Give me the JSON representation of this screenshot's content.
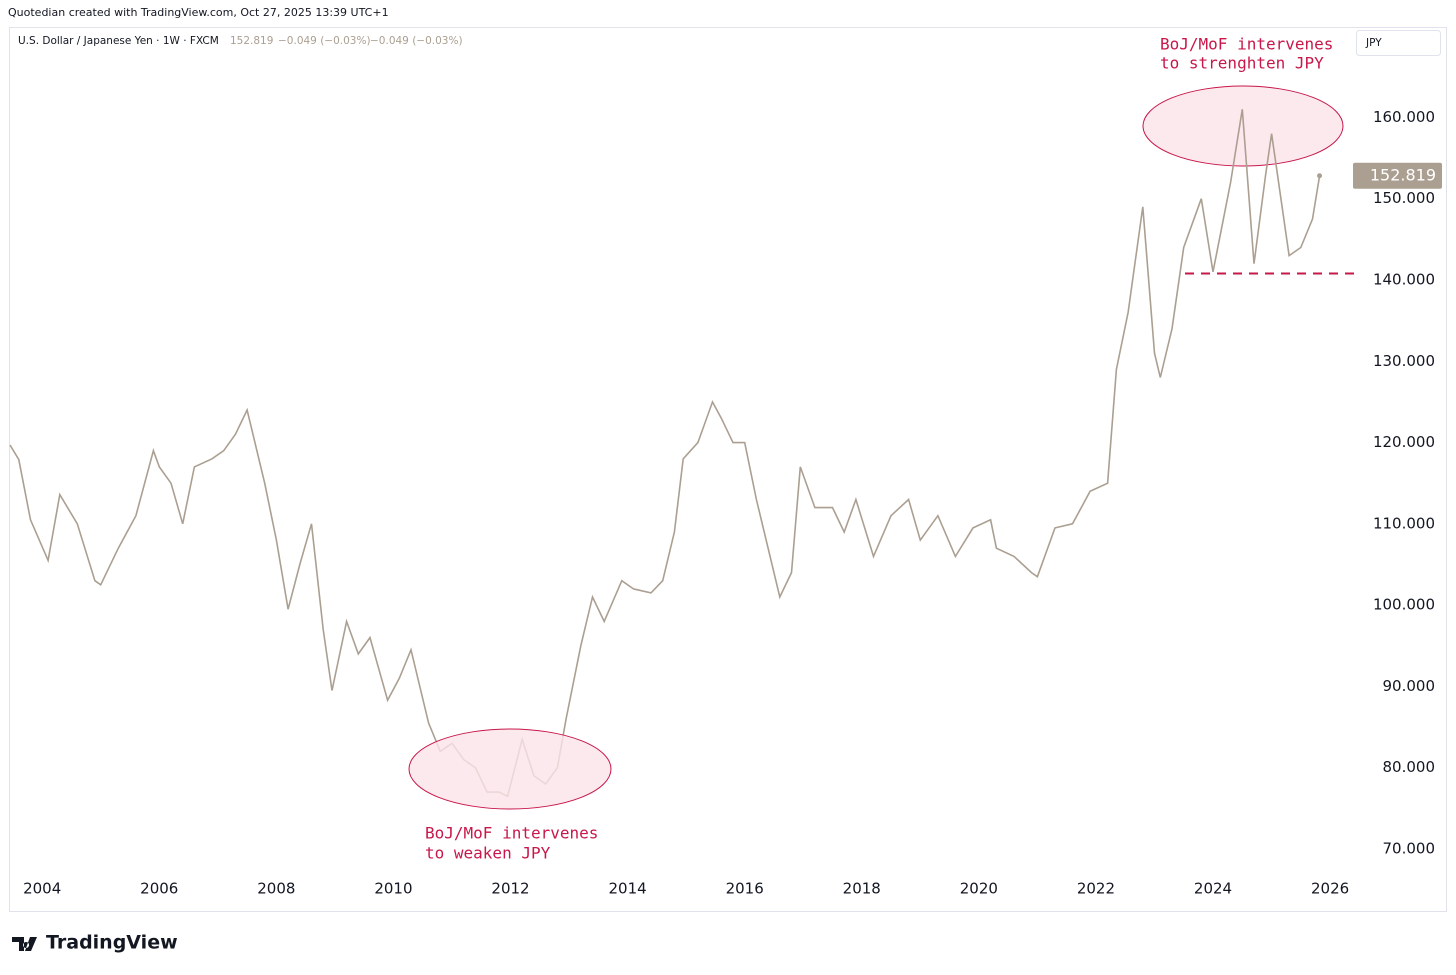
{
  "header": "Quotedian created with TradingView.com, Oct 27, 2025 13:39 UTC+1",
  "chart_data": {
    "type": "line",
    "symbol_info": {
      "last": "152.819",
      "change": "−0.049 (−0.03%)",
      "change_ext": "−0.049 (−0.03%)"
    },
    "currency": "JPY",
    "x": [
      2003.45,
      2003.6,
      2003.8,
      2004.1,
      2004.3,
      2004.6,
      2004.9,
      2005.0,
      2005.3,
      2005.6,
      2005.9,
      2006.0,
      2006.2,
      2006.4,
      2006.6,
      2006.9,
      2007.1,
      2007.3,
      2007.5,
      2007.8,
      2008.0,
      2008.2,
      2008.4,
      2008.6,
      2008.8,
      2008.95,
      2009.2,
      2009.4,
      2009.6,
      2009.9,
      2010.1,
      2010.3,
      2010.6,
      2010.8,
      2011.0,
      2011.2,
      2011.4,
      2011.6,
      2011.8,
      2011.95,
      2012.2,
      2012.4,
      2012.6,
      2012.8,
      2012.95,
      2013.2,
      2013.4,
      2013.6,
      2013.9,
      2014.1,
      2014.4,
      2014.6,
      2014.8,
      2014.95,
      2015.2,
      2015.45,
      2015.6,
      2015.8,
      2016.0,
      2016.2,
      2016.4,
      2016.6,
      2016.8,
      2016.95,
      2017.2,
      2017.5,
      2017.7,
      2017.9,
      2018.2,
      2018.5,
      2018.8,
      2019.0,
      2019.3,
      2019.6,
      2019.9,
      2020.2,
      2020.3,
      2020.6,
      2020.9,
      2021.0,
      2021.3,
      2021.6,
      2021.9,
      2022.2,
      2022.35,
      2022.55,
      2022.8,
      2023.0,
      2023.1,
      2023.3,
      2023.5,
      2023.8,
      2024.0,
      2024.3,
      2024.5,
      2024.7,
      2024.9,
      2025.0,
      2025.3,
      2025.5,
      2025.7,
      2025.82
    ],
    "series": [
      {
        "name": "U.S. Dollar / Japanese Yen · 1W · FXCM",
        "color": "#ab9f91",
        "values": [
          119.7,
          117.9,
          110.5,
          105.5,
          113.6,
          110,
          103,
          102.5,
          107,
          111,
          119,
          117,
          115,
          110,
          117,
          118,
          119,
          121,
          124,
          115,
          108,
          99.5,
          105,
          110,
          97,
          89.5,
          98,
          94,
          96,
          88.3,
          91,
          94.5,
          85.5,
          82,
          83,
          81,
          80,
          77,
          77,
          76.5,
          83.5,
          79,
          78,
          80,
          86,
          95,
          101,
          98,
          103,
          102,
          101.5,
          103,
          109,
          118,
          120,
          125,
          123,
          120,
          120,
          113,
          107,
          101,
          104,
          117,
          112,
          112,
          109,
          113,
          106,
          111,
          113,
          108,
          111,
          106,
          109.5,
          110.5,
          107,
          106,
          104,
          103.5,
          109.5,
          110,
          114,
          115,
          129,
          136,
          149,
          131,
          128,
          134,
          144,
          150,
          141,
          152,
          161,
          142,
          153,
          158,
          143,
          144,
          147.5,
          152.819
        ]
      }
    ],
    "xlim": [
      2003.45,
      2026.34
    ],
    "ylim": [
      66.8,
      171
    ],
    "xticks": [
      2004,
      2006,
      2008,
      2010,
      2012,
      2014,
      2016,
      2018,
      2020,
      2022,
      2024,
      2026
    ],
    "yticks": [
      {
        "value": 70,
        "label": "70.000"
      },
      {
        "value": 80,
        "label": "80.000"
      },
      {
        "value": 90,
        "label": "90.000"
      },
      {
        "value": 100,
        "label": "100.000"
      },
      {
        "value": 110,
        "label": "110.000"
      },
      {
        "value": 120,
        "label": "120.000"
      },
      {
        "value": 130,
        "label": "130.000"
      },
      {
        "value": 140,
        "label": "140.000"
      },
      {
        "value": 150,
        "label": "150.000"
      },
      {
        "value": 160,
        "label": "160.000"
      }
    ],
    "hline": 140.8,
    "annotations": [
      [
        "BoJ/MoF intervenes",
        "to strenghten JPY"
      ],
      [
        "BoJ/MoF intervenes",
        "to weaken JPY"
      ]
    ],
    "annotation_color": "#c8174a"
  },
  "footer": "TradingView"
}
